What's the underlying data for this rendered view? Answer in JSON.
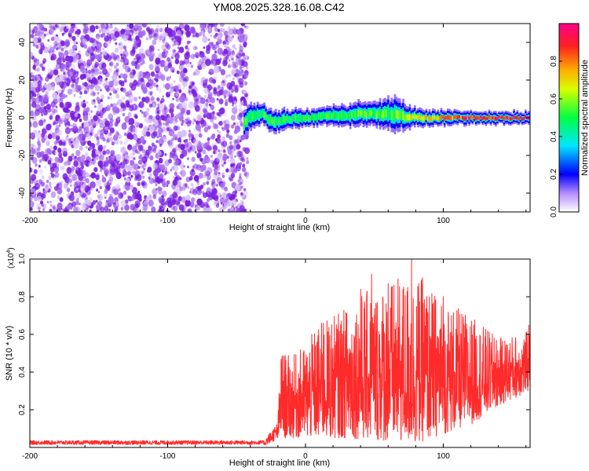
{
  "title": "YM08.2025.328.16.08.C42",
  "colors": {
    "noise": "#8a2be2",
    "snr_line": "#ff2a2a",
    "axis": "#000000",
    "background": "#ffffff"
  },
  "chart_data": [
    {
      "type": "heatmap",
      "name": "spectrogram",
      "xlabel": "Height of straight line (km)",
      "ylabel": "Frequency (Hz)",
      "xlim": [
        -200,
        163
      ],
      "ylim": [
        -50,
        50
      ],
      "xticks": [
        -200,
        -100,
        0,
        100
      ],
      "xtick_labels": [
        "-200",
        "-100",
        "0",
        "100"
      ],
      "yticks": [
        -40,
        -20,
        0,
        20,
        40
      ],
      "ytick_labels": [
        "-40",
        "-20",
        "0",
        "20",
        "40"
      ],
      "noise_region": {
        "x_start": -200,
        "x_end": -42,
        "freq_range": [
          -50,
          50
        ],
        "amplitude_level": 0.15
      },
      "signal_band": {
        "x_start": -45,
        "x_end": 163,
        "center_track": [
          {
            "x": -45,
            "f": -3
          },
          {
            "x": -40,
            "f": 1
          },
          {
            "x": -32,
            "f": 2
          },
          {
            "x": -25,
            "f": -2
          },
          {
            "x": -15,
            "f": -1
          },
          {
            "x": 0,
            "f": 0
          },
          {
            "x": 20,
            "f": 1
          },
          {
            "x": 40,
            "f": 2
          },
          {
            "x": 60,
            "f": 2
          },
          {
            "x": 80,
            "f": 0
          },
          {
            "x": 100,
            "f": 0
          },
          {
            "x": 130,
            "f": 0
          },
          {
            "x": 163,
            "f": 0
          }
        ],
        "width_track": [
          {
            "x": -45,
            "w": 6
          },
          {
            "x": 0,
            "w": 4
          },
          {
            "x": 50,
            "w": 6
          },
          {
            "x": 65,
            "w": 8
          },
          {
            "x": 80,
            "w": 4
          },
          {
            "x": 120,
            "w": 3
          },
          {
            "x": 163,
            "w": 3
          }
        ],
        "core_amplitude_track": [
          {
            "x": -45,
            "a": 0.55
          },
          {
            "x": -20,
            "a": 0.5
          },
          {
            "x": 20,
            "a": 0.55
          },
          {
            "x": 60,
            "a": 0.55
          },
          {
            "x": 90,
            "a": 0.75
          },
          {
            "x": 120,
            "a": 0.9
          },
          {
            "x": 163,
            "a": 0.95
          }
        ]
      },
      "colorbar": {
        "label": "Normalized spectral amplitude",
        "range": [
          0,
          1
        ],
        "ticks": [
          0.0,
          0.2,
          0.4,
          0.6,
          0.8
        ],
        "tick_labels": [
          "0.0",
          "0.2",
          "0.4",
          "0.6",
          "0.8"
        ]
      }
    },
    {
      "type": "line",
      "name": "snr",
      "xlabel": "Height of straight line (km)",
      "ylabel": "SNR (10 * v/v)",
      "scale_label": "(x10",
      "scale_exponent": "4",
      "scale_close": ")",
      "xlim": [
        -200,
        163
      ],
      "ylim": [
        0,
        1.0
      ],
      "xticks": [
        -200,
        -100,
        0,
        100
      ],
      "xtick_labels": [
        "-200",
        "-100",
        "0",
        "100"
      ],
      "yticks": [
        0.2,
        0.4,
        0.6,
        0.8,
        1.0
      ],
      "ytick_labels": [
        "0.2",
        "0.4",
        "0.6",
        "0.8",
        "1.0"
      ],
      "series": [
        {
          "name": "SNR",
          "color": "#ff2a2a",
          "envelope": [
            {
              "x": -200,
              "max": 0.04
            },
            {
              "x": -30,
              "max": 0.04
            },
            {
              "x": -20,
              "max": 0.14
            },
            {
              "x": -18,
              "max": 0.52
            },
            {
              "x": -10,
              "max": 0.48
            },
            {
              "x": 0,
              "max": 0.55
            },
            {
              "x": 10,
              "max": 0.66
            },
            {
              "x": 20,
              "max": 0.7
            },
            {
              "x": 30,
              "max": 0.75
            },
            {
              "x": 40,
              "max": 0.82
            },
            {
              "x": 60,
              "max": 0.88
            },
            {
              "x": 80,
              "max": 0.92
            },
            {
              "x": 100,
              "max": 0.78
            },
            {
              "x": 120,
              "max": 0.7
            },
            {
              "x": 140,
              "max": 0.58
            },
            {
              "x": 163,
              "max": 0.62
            }
          ],
          "baseline": [
            {
              "x": -200,
              "min": 0.01
            },
            {
              "x": -30,
              "min": 0.01
            },
            {
              "x": -18,
              "min": 0.05
            },
            {
              "x": 0,
              "min": 0.05
            },
            {
              "x": 30,
              "min": 0.05
            },
            {
              "x": 80,
              "min": 0.02
            },
            {
              "x": 120,
              "min": 0.12
            },
            {
              "x": 140,
              "min": 0.22
            },
            {
              "x": 163,
              "min": 0.3
            }
          ],
          "peaks": [
            {
              "x": -17,
              "y": 0.48
            },
            {
              "x": 13,
              "y": 0.66
            },
            {
              "x": 30,
              "y": 0.71
            },
            {
              "x": 40,
              "y": 0.84
            },
            {
              "x": 48,
              "y": 0.92
            },
            {
              "x": 60,
              "y": 0.87
            },
            {
              "x": 77,
              "y": 1.0
            },
            {
              "x": 85,
              "y": 0.9
            },
            {
              "x": 100,
              "y": 0.8
            },
            {
              "x": 137,
              "y": 0.58
            },
            {
              "x": 162,
              "y": 0.65
            }
          ]
        }
      ]
    }
  ]
}
